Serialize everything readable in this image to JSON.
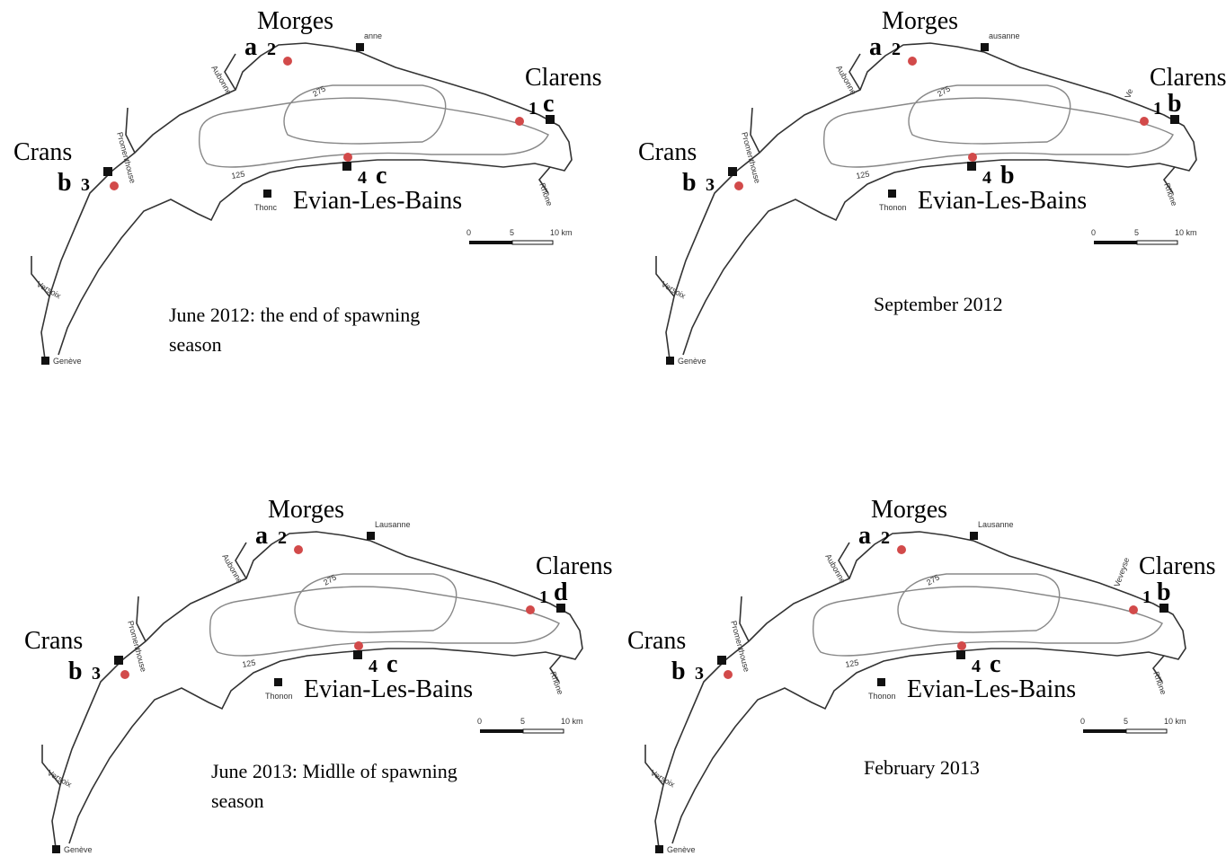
{
  "common": {
    "rivers": [
      "Aubonne",
      "Promenthouse",
      "Versoix",
      "Rhône"
    ],
    "depths": [
      "275",
      "125"
    ],
    "city": "Genève",
    "scale": [
      "0",
      "5",
      "10 km"
    ]
  },
  "panels": [
    {
      "caption": [
        "June 2012: the end of spawning",
        "season"
      ],
      "lausanne": "anne",
      "thonon": "Thonc",
      "veveyse": null,
      "sites": [
        {
          "city": "Morges",
          "letter": "a",
          "number": "2"
        },
        {
          "city": "Clarens",
          "letter": "c",
          "number": "1"
        },
        {
          "city": "Crans",
          "letter": "b",
          "number": "3"
        },
        {
          "city": "Evian-Les-Bains",
          "letter": "c",
          "number": "4"
        }
      ]
    },
    {
      "caption": [
        "September 2012"
      ],
      "lausanne": "ausanne",
      "thonon": "Thonon",
      "veveyse": "Ve",
      "sites": [
        {
          "city": "Morges",
          "letter": "a",
          "number": "2"
        },
        {
          "city": "Clarens",
          "letter": "b",
          "number": "1"
        },
        {
          "city": "Crans",
          "letter": "b",
          "number": "3"
        },
        {
          "city": "Evian-Les-Bains",
          "letter": "b",
          "number": "4"
        }
      ]
    },
    {
      "caption": [
        "June 2013: Midlle of spawning",
        "season"
      ],
      "lausanne": "Lausanne",
      "thonon": "Thonon",
      "veveyse": null,
      "sites": [
        {
          "city": "Morges",
          "letter": "a",
          "number": "2"
        },
        {
          "city": "Clarens",
          "letter": "d",
          "number": "1"
        },
        {
          "city": "Crans",
          "letter": "b",
          "number": "3"
        },
        {
          "city": "Evian-Les-Bains",
          "letter": "c",
          "number": "4"
        }
      ]
    },
    {
      "caption": [
        "February 2013"
      ],
      "lausanne": "Lausanne",
      "thonon": "Thonon",
      "veveyse": "Veveyse",
      "sites": [
        {
          "city": "Morges",
          "letter": "a",
          "number": "2"
        },
        {
          "city": "Clarens",
          "letter": "b",
          "number": "1"
        },
        {
          "city": "Crans",
          "letter": "b",
          "number": "3"
        },
        {
          "city": "Evian-Les-Bains",
          "letter": "c",
          "number": "4"
        }
      ]
    }
  ]
}
